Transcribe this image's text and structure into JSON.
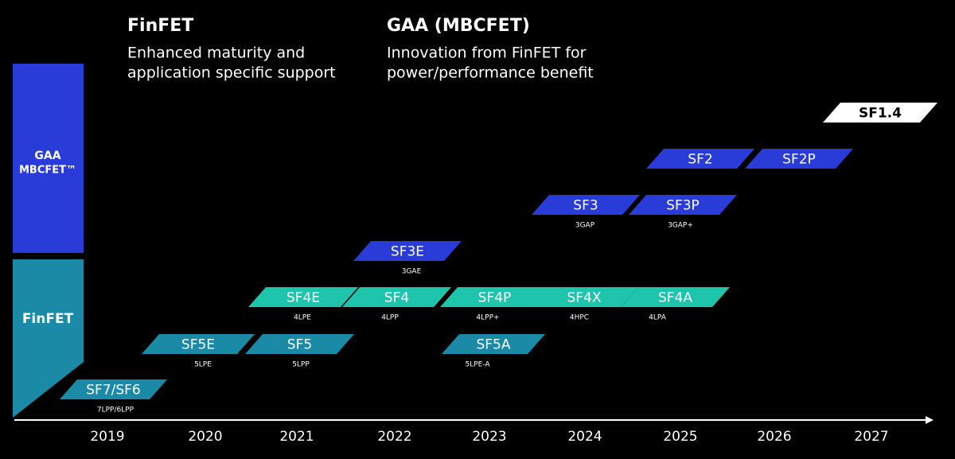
{
  "headers": [
    {
      "title": "FinFET",
      "lines": [
        "Enhanced maturity and",
        "application specific support"
      ]
    },
    {
      "title": "GAA (MBCFET)",
      "lines": [
        "Innovation from FinFET for",
        "power/performance benefit"
      ]
    }
  ],
  "side": {
    "gaa": [
      "GAA",
      "MBCFET™"
    ],
    "finfet": "FinFET"
  },
  "nodes": [
    {
      "label": "SF7/SF6",
      "sublabel": "7LPP/6LPP",
      "color": "#1b8aa6"
    },
    {
      "label": "SF5E",
      "sublabel": "5LPE",
      "color": "#1b8aa6"
    },
    {
      "label": "SF5",
      "sublabel": "5LPP",
      "color": "#1b8aa6"
    },
    {
      "label": "SF4E",
      "sublabel": "4LPE",
      "color": "#1fc4ad"
    },
    {
      "label": "SF4",
      "sublabel": "4LPP",
      "color": "#1fc4ad"
    },
    {
      "label": "SF4P",
      "sublabel": "4LPP+",
      "color": "#1fc4ad"
    },
    {
      "label": "SF4X",
      "sublabel": "4HPC",
      "color": "#1fc4ad"
    },
    {
      "label": "SF4A",
      "sublabel": "4LPA",
      "color": "#1fc4ad"
    },
    {
      "label": "SF5A",
      "sublabel": "5LPE-A",
      "color": "#1b8aa6"
    },
    {
      "label": "SF3E",
      "sublabel": "3GAE",
      "color": "#2a3cd8"
    },
    {
      "label": "SF3",
      "sublabel": "3GAP",
      "color": "#2a3cd8"
    },
    {
      "label": "SF3P",
      "sublabel": "3GAP+",
      "color": "#2a3cd8"
    },
    {
      "label": "SF2",
      "color": "#2a3cd8"
    },
    {
      "label": "SF2P",
      "color": "#2a3cd8"
    },
    {
      "label": "SF1.4",
      "color": "#ffffff"
    }
  ],
  "years": [
    "2019",
    "2020",
    "2021",
    "2022",
    "2023",
    "2024",
    "2025",
    "2026",
    "2027"
  ]
}
